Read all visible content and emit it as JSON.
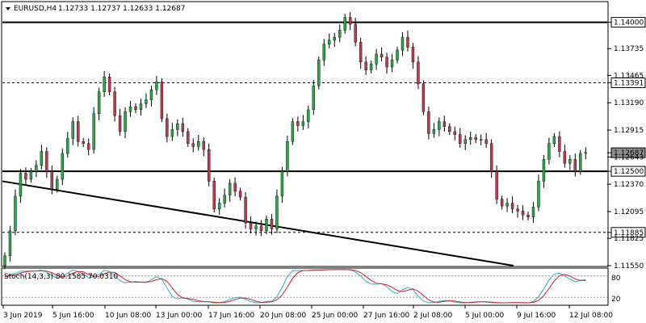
{
  "header": {
    "symbol": "EURUSD,H4",
    "ohlc": "1.12733 1.12737 1.12633 1.12687"
  },
  "indicator": {
    "label": "Stoch(14,3,3) 80.1585 70.0310",
    "levels": [
      "80",
      "20"
    ]
  },
  "chart_data": {
    "type": "candlestick",
    "symbol": "EURUSD",
    "timeframe": "H4",
    "last_bar": {
      "open": 1.12733,
      "high": 1.12737,
      "low": 1.12633,
      "close": 1.12687
    },
    "current_price": 1.12687,
    "y_ticks": [
      1.14,
      1.13735,
      1.13465,
      1.13391,
      1.1319,
      1.12915,
      1.12687,
      1.12643,
      1.125,
      1.1237,
      1.12095,
      1.11885,
      1.11825,
      1.1155
    ],
    "y_tick_labels": [
      "1.14000",
      "1.13735",
      "1.13465",
      "1.13391",
      "1.13190",
      "1.12915",
      "1.12687",
      "1.12643",
      "1.12500",
      "1.12370",
      "1.12095",
      "1.11885",
      "1.11825",
      "1.11550"
    ],
    "ylim": [
      1.1155,
      1.142
    ],
    "x_tick_labels": [
      "3 Jun 2019",
      "5 Jun 16:00",
      "10 Jun 08:00",
      "13 Jun 00:00",
      "17 Jun 16:00",
      "20 Jun 08:00",
      "25 Jun 00:00",
      "27 Jun 16:00",
      "2 Jul 08:00",
      "5 Jul 00:00",
      "9 Jul 16:00",
      "12 Jul 08:00"
    ],
    "horizontal_levels": [
      {
        "price": 1.14,
        "style": "solid",
        "highlight": true
      },
      {
        "price": 1.13391,
        "style": "dashed",
        "highlight": false
      },
      {
        "price": 1.125,
        "style": "solid",
        "highlight": true
      },
      {
        "price": 1.11885,
        "style": "dashed",
        "highlight": false
      }
    ],
    "trendline": {
      "start": {
        "x": "3 Jun 2019",
        "y": 1.124
      },
      "end": {
        "x": "9 Jul 16:00",
        "y": 1.1155
      }
    },
    "closes": [
      1.1165,
      1.119,
      1.1225,
      1.1248,
      1.1242,
      1.125,
      1.1256,
      1.127,
      1.125,
      1.1232,
      1.1242,
      1.1268,
      1.1283,
      1.13,
      1.128,
      1.1278,
      1.1272,
      1.1308,
      1.133,
      1.1345,
      1.133,
      1.1306,
      1.129,
      1.131,
      1.1315,
      1.1312,
      1.1318,
      1.1322,
      1.1332,
      1.134,
      1.1303,
      1.1285,
      1.1292,
      1.1298,
      1.129,
      1.1278,
      1.1275,
      1.128,
      1.1272,
      1.124,
      1.1212,
      1.1218,
      1.1226,
      1.1238,
      1.123,
      1.1224,
      1.1198,
      1.1192,
      1.1195,
      1.119,
      1.1202,
      1.1192,
      1.1225,
      1.125,
      1.128,
      1.13,
      1.1296,
      1.13,
      1.1312,
      1.1336,
      1.1362,
      1.1378,
      1.1382,
      1.1385,
      1.1392,
      1.1405,
      1.1398,
      1.138,
      1.136,
      1.1352,
      1.1358,
      1.1368,
      1.1365,
      1.1355,
      1.1362,
      1.1372,
      1.1385,
      1.1375,
      1.136,
      1.1338,
      1.131,
      1.1288,
      1.1292,
      1.13,
      1.1295,
      1.129,
      1.1287,
      1.1278,
      1.1282,
      1.1284,
      1.1282,
      1.1282,
      1.1278,
      1.125,
      1.1222,
      1.1215,
      1.1218,
      1.1212,
      1.121,
      1.1206,
      1.1204,
      1.1214,
      1.124,
      1.1262,
      1.1278,
      1.1285,
      1.127,
      1.1258,
      1.1262,
      1.125,
      1.1268,
      1.1269
    ]
  }
}
